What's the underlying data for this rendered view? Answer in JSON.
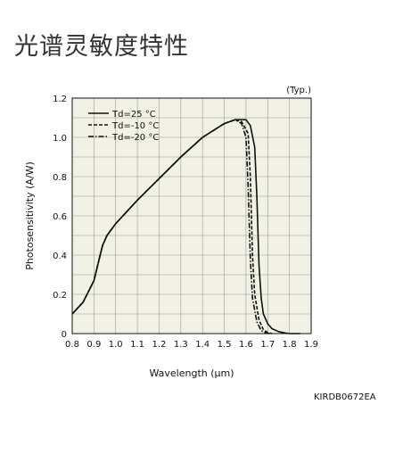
{
  "page": {
    "title": "光谱灵敏度特性",
    "doc_code": "KIRDB0672EA"
  },
  "chart_data": {
    "type": "line",
    "title": "",
    "note": "(Typ.)",
    "xlabel": "Wavelength (μm)",
    "ylabel": "Photosensitivity (A/W)",
    "xlim": [
      0.8,
      1.9
    ],
    "ylim": [
      0,
      1.2
    ],
    "xticks": [
      "0.8",
      "0.9",
      "1.0",
      "1.1",
      "1.2",
      "1.3",
      "1.4",
      "1.5",
      "1.6",
      "1.7",
      "1.8",
      "1.9"
    ],
    "yticks": [
      "0",
      "0.2",
      "0.4",
      "0.6",
      "0.8",
      "1.0",
      "1.2"
    ],
    "grid": true,
    "legend_position": "top-left",
    "colors": {
      "plot_bg": "#f2f1e6",
      "line": "#111111",
      "grid": "#9a9a9a"
    },
    "series": [
      {
        "name": "Td=25 °C",
        "style": "solid",
        "x": [
          0.8,
          0.85,
          0.9,
          0.92,
          0.94,
          0.96,
          1.0,
          1.1,
          1.2,
          1.3,
          1.4,
          1.5,
          1.55,
          1.6,
          1.62,
          1.64,
          1.65,
          1.66,
          1.67,
          1.68,
          1.7,
          1.72,
          1.75,
          1.78,
          1.8,
          1.85
        ],
        "values": [
          0.1,
          0.16,
          0.27,
          0.36,
          0.45,
          0.5,
          0.56,
          0.68,
          0.79,
          0.9,
          1.0,
          1.07,
          1.09,
          1.09,
          1.06,
          0.95,
          0.7,
          0.35,
          0.18,
          0.1,
          0.05,
          0.025,
          0.01,
          0.003,
          0.0,
          0.0
        ]
      },
      {
        "name": "Td=-10 °C",
        "style": "dashed",
        "x": [
          0.8,
          0.85,
          0.9,
          0.92,
          0.94,
          0.96,
          1.0,
          1.1,
          1.2,
          1.3,
          1.4,
          1.5,
          1.55,
          1.58,
          1.61,
          1.62,
          1.63,
          1.64,
          1.66,
          1.68,
          1.7,
          1.72
        ],
        "values": [
          0.1,
          0.16,
          0.27,
          0.36,
          0.45,
          0.5,
          0.56,
          0.68,
          0.79,
          0.9,
          1.0,
          1.07,
          1.09,
          1.08,
          1.02,
          0.8,
          0.4,
          0.2,
          0.07,
          0.02,
          0.005,
          0.0
        ]
      },
      {
        "name": "Td=-20 °C",
        "style": "dashdot",
        "x": [
          0.8,
          0.85,
          0.9,
          0.92,
          0.94,
          0.96,
          1.0,
          1.1,
          1.2,
          1.3,
          1.4,
          1.5,
          1.55,
          1.58,
          1.6,
          1.61,
          1.62,
          1.63,
          1.65,
          1.67,
          1.69,
          1.71
        ],
        "values": [
          0.1,
          0.16,
          0.27,
          0.36,
          0.45,
          0.5,
          0.56,
          0.68,
          0.79,
          0.9,
          1.0,
          1.07,
          1.09,
          1.07,
          1.0,
          0.75,
          0.38,
          0.18,
          0.06,
          0.015,
          0.004,
          0.0
        ]
      }
    ]
  }
}
